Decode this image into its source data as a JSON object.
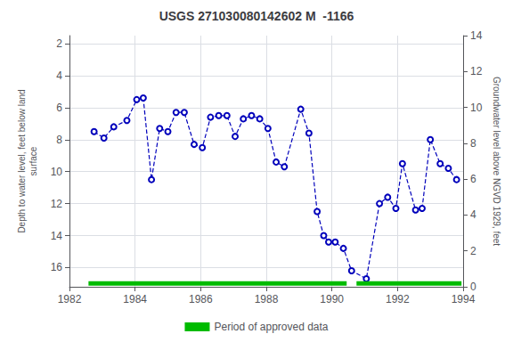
{
  "chart_data": {
    "type": "line",
    "title": "USGS 271030080142602 M  -1166",
    "ylabel": "Depth to water level, feet below land\nsurface",
    "y2label": "Groundwater level above NGVD 1929, feet",
    "xlim": [
      1982,
      1994
    ],
    "xticks": [
      1982,
      1984,
      1986,
      1988,
      1990,
      1992,
      1994
    ],
    "ylim": [
      17.2,
      1.5
    ],
    "yticks": [
      2,
      4,
      6,
      8,
      10,
      12,
      14,
      16
    ],
    "y2lim": [
      0,
      14
    ],
    "y2ticks": [
      0,
      2,
      4,
      6,
      8,
      10,
      12,
      14
    ],
    "grid": true,
    "x": [
      1982.75,
      1983.05,
      1983.35,
      1983.75,
      1984.05,
      1984.25,
      1984.5,
      1984.75,
      1985.0,
      1985.25,
      1985.5,
      1985.8,
      1986.05,
      1986.3,
      1986.55,
      1986.8,
      1987.05,
      1987.3,
      1987.55,
      1987.8,
      1988.05,
      1988.3,
      1988.55,
      1989.05,
      1989.3,
      1989.55,
      1989.75,
      1989.9,
      1990.1,
      1990.35,
      1990.6,
      1991.05,
      1991.45,
      1991.7,
      1991.95,
      1992.15,
      1992.55,
      1992.75,
      1993.0,
      1993.3,
      1993.55,
      1993.8
    ],
    "series": [
      {
        "type": "line",
        "color": "#0000BB",
        "line_style": "dashed",
        "marker": "circle",
        "values": [
          7.5,
          7.9,
          7.2,
          6.8,
          5.5,
          5.4,
          10.5,
          7.3,
          7.5,
          6.3,
          6.3,
          8.3,
          8.5,
          6.6,
          6.5,
          6.5,
          7.8,
          6.7,
          6.5,
          6.7,
          7.3,
          9.4,
          9.7,
          6.1,
          7.6,
          12.5,
          14.0,
          14.4,
          14.4,
          14.8,
          16.2,
          16.7,
          12.0,
          11.6,
          12.3,
          9.5,
          12.4,
          12.3,
          8.0,
          9.5,
          9.8,
          10.5
        ]
      },
      {
        "type": "period_bar",
        "name": "Period of approved data",
        "color": "#00bb00",
        "x_ranges": [
          [
            1982.58,
            1990.45
          ],
          [
            1990.75,
            1993.95
          ]
        ],
        "y_range": [
          16.85,
          17.13
        ]
      }
    ]
  }
}
